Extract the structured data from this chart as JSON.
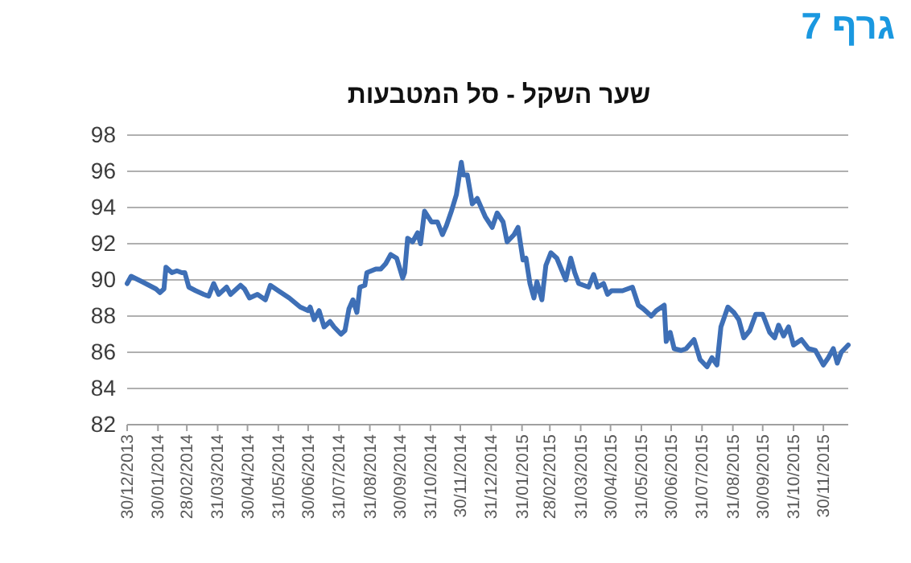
{
  "chart_data": {
    "type": "line",
    "title": "שער השקל - סל המטבעות",
    "annotations": [
      "גרף 7"
    ],
    "x": [
      "2013-12-30",
      "2014-01-03",
      "2014-01-14",
      "2014-01-28",
      "2014-02-01",
      "2014-02-05",
      "2014-02-07",
      "2014-02-13",
      "2014-02-18",
      "2014-02-23",
      "2014-02-26",
      "2014-03-02",
      "2014-03-09",
      "2014-03-17",
      "2014-03-22",
      "2014-03-27",
      "2014-04-01",
      "2014-04-09",
      "2014-04-13",
      "2014-04-23",
      "2014-04-27",
      "2014-05-02",
      "2014-05-10",
      "2014-05-18",
      "2014-05-23",
      "2014-05-31",
      "2014-06-11",
      "2014-06-22",
      "2014-06-30",
      "2014-07-02",
      "2014-07-06",
      "2014-07-11",
      "2014-07-16",
      "2014-07-22",
      "2014-07-26",
      "2014-08-02",
      "2014-08-06",
      "2014-08-10",
      "2014-08-14",
      "2014-08-18",
      "2014-08-21",
      "2014-08-26",
      "2014-08-28",
      "2014-09-06",
      "2014-09-11",
      "2014-09-16",
      "2014-09-21",
      "2014-09-27",
      "2014-10-03",
      "2014-10-05",
      "2014-10-08",
      "2014-10-13",
      "2014-10-18",
      "2014-10-21",
      "2014-10-25",
      "2014-11-01",
      "2014-11-07",
      "2014-11-12",
      "2014-11-16",
      "2014-11-21",
      "2014-11-26",
      "2014-12-01",
      "2014-12-03",
      "2014-12-07",
      "2014-12-12",
      "2014-12-17",
      "2014-12-25",
      "2015-01-01",
      "2015-01-06",
      "2015-01-12",
      "2015-01-16",
      "2015-01-23",
      "2015-01-27",
      "2015-02-01",
      "2015-02-04",
      "2015-02-08",
      "2015-02-12",
      "2015-02-15",
      "2015-02-20",
      "2015-02-24",
      "2015-03-01",
      "2015-03-07",
      "2015-03-13",
      "2015-03-16",
      "2015-03-21",
      "2015-03-25",
      "2015-03-29",
      "2015-04-08",
      "2015-04-13",
      "2015-04-17",
      "2015-04-23",
      "2015-04-27",
      "2015-05-01",
      "2015-05-12",
      "2015-05-22",
      "2015-05-28",
      "2015-06-02",
      "2015-06-10",
      "2015-06-15",
      "2015-06-23",
      "2015-06-25",
      "2015-06-29",
      "2015-07-03",
      "2015-07-10",
      "2015-07-15",
      "2015-07-23",
      "2015-07-29",
      "2015-08-05",
      "2015-08-10",
      "2015-08-15",
      "2015-08-19",
      "2015-08-26",
      "2015-09-01",
      "2015-09-06",
      "2015-09-11",
      "2015-09-17",
      "2015-09-23",
      "2015-09-30",
      "2015-10-07",
      "2015-10-12",
      "2015-10-16",
      "2015-10-21",
      "2015-10-26",
      "2015-10-31",
      "2015-11-08",
      "2015-11-15",
      "2015-11-22",
      "2015-11-30",
      "2015-12-05",
      "2015-12-10",
      "2015-12-14",
      "2015-12-18",
      "2015-12-25"
    ],
    "series": [
      {
        "color": "#3e6fb6",
        "values": [
          89.8,
          90.2,
          89.9,
          89.5,
          89.3,
          89.5,
          90.7,
          90.4,
          90.5,
          90.4,
          90.4,
          89.6,
          89.4,
          89.2,
          89.1,
          89.8,
          89.2,
          89.6,
          89.2,
          89.7,
          89.5,
          89.0,
          89.2,
          88.9,
          89.7,
          89.4,
          89.0,
          88.5,
          88.3,
          88.5,
          87.8,
          88.3,
          87.4,
          87.7,
          87.4,
          87.0,
          87.2,
          88.4,
          88.9,
          88.2,
          89.6,
          89.7,
          90.4,
          90.6,
          90.6,
          90.9,
          91.4,
          91.2,
          90.1,
          90.4,
          92.3,
          92.1,
          92.6,
          92.0,
          93.8,
          93.2,
          93.2,
          92.5,
          93.0,
          93.8,
          94.7,
          96.5,
          95.8,
          95.8,
          94.2,
          94.5,
          93.5,
          92.9,
          93.7,
          93.2,
          92.1,
          92.5,
          92.9,
          91.1,
          91.2,
          89.8,
          89.0,
          89.9,
          88.9,
          90.8,
          91.5,
          91.2,
          90.4,
          90.0,
          91.2,
          90.4,
          89.8,
          89.6,
          90.3,
          89.6,
          89.8,
          89.2,
          89.4,
          89.4,
          89.6,
          88.6,
          88.4,
          88.0,
          88.3,
          88.6,
          86.6,
          87.1,
          86.2,
          86.1,
          86.2,
          86.7,
          85.6,
          85.2,
          85.7,
          85.3,
          87.4,
          88.5,
          88.2,
          87.8,
          86.8,
          87.2,
          88.1,
          88.1,
          87.1,
          86.8,
          87.5,
          86.9,
          87.4,
          86.4,
          86.7,
          86.2,
          86.1,
          85.3,
          85.7,
          86.2,
          85.4,
          86.0,
          86.4
        ]
      }
    ],
    "xlim": [
      "2013-12-30",
      "2015-12-25"
    ],
    "xticks": [
      {
        "value": "2013-12-30",
        "label": "30/12/2013"
      },
      {
        "value": "2014-01-30",
        "label": "30/01/2014"
      },
      {
        "value": "2014-02-28",
        "label": "28/02/2014"
      },
      {
        "value": "2014-03-31",
        "label": "31/03/2014"
      },
      {
        "value": "2014-04-30",
        "label": "30/04/2014"
      },
      {
        "value": "2014-05-31",
        "label": "31/05/2014"
      },
      {
        "value": "2014-06-30",
        "label": "30/06/2014"
      },
      {
        "value": "2014-07-31",
        "label": "31/07/2014"
      },
      {
        "value": "2014-08-31",
        "label": "31/08/2014"
      },
      {
        "value": "2014-09-30",
        "label": "30/09/2014"
      },
      {
        "value": "2014-10-31",
        "label": "31/10/2014"
      },
      {
        "value": "2014-11-30",
        "label": "30/11/2014"
      },
      {
        "value": "2014-12-31",
        "label": "31/12/2014"
      },
      {
        "value": "2015-01-31",
        "label": "31/01/2015"
      },
      {
        "value": "2015-02-28",
        "label": "28/02/2015"
      },
      {
        "value": "2015-03-31",
        "label": "31/03/2015"
      },
      {
        "value": "2015-04-30",
        "label": "30/04/2015"
      },
      {
        "value": "2015-05-31",
        "label": "31/05/2015"
      },
      {
        "value": "2015-06-30",
        "label": "30/06/2015"
      },
      {
        "value": "2015-07-31",
        "label": "31/07/2015"
      },
      {
        "value": "2015-08-31",
        "label": "31/08/2015"
      },
      {
        "value": "2015-09-30",
        "label": "30/09/2015"
      },
      {
        "value": "2015-10-31",
        "label": "31/10/2015"
      },
      {
        "value": "2015-11-30",
        "label": "30/11/2015"
      }
    ],
    "ylim": [
      82,
      98
    ],
    "yticks": [
      82,
      84,
      86,
      88,
      90,
      92,
      94,
      96,
      98
    ],
    "grid": "y"
  }
}
